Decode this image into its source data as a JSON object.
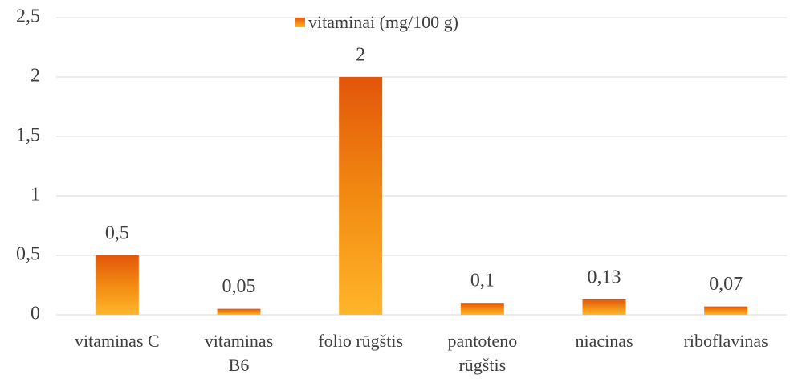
{
  "chart_data": {
    "type": "bar",
    "legend": "vitaminai (mg/100 g)",
    "legend_position": "top",
    "categories": [
      "vitaminas C",
      "vitaminas B6",
      "folio rūgštis",
      "pantoteno rūgštis",
      "niacinas",
      "riboflavinas"
    ],
    "values": [
      0.5,
      0.05,
      2,
      0.1,
      0.13,
      0.07
    ],
    "value_labels": [
      "0,5",
      "0,05",
      "2",
      "0,1",
      "0,13",
      "0,07"
    ],
    "color": "#f28a12",
    "ylim": [
      0,
      2.5
    ],
    "yticks": [
      0,
      {
        "value": 0.5,
        "label": "0,5"
      },
      1,
      {
        "value": 1.5,
        "label": "1,5"
      },
      2,
      {
        "value": 2.5,
        "label": "2,5"
      }
    ],
    "grid": true
  }
}
